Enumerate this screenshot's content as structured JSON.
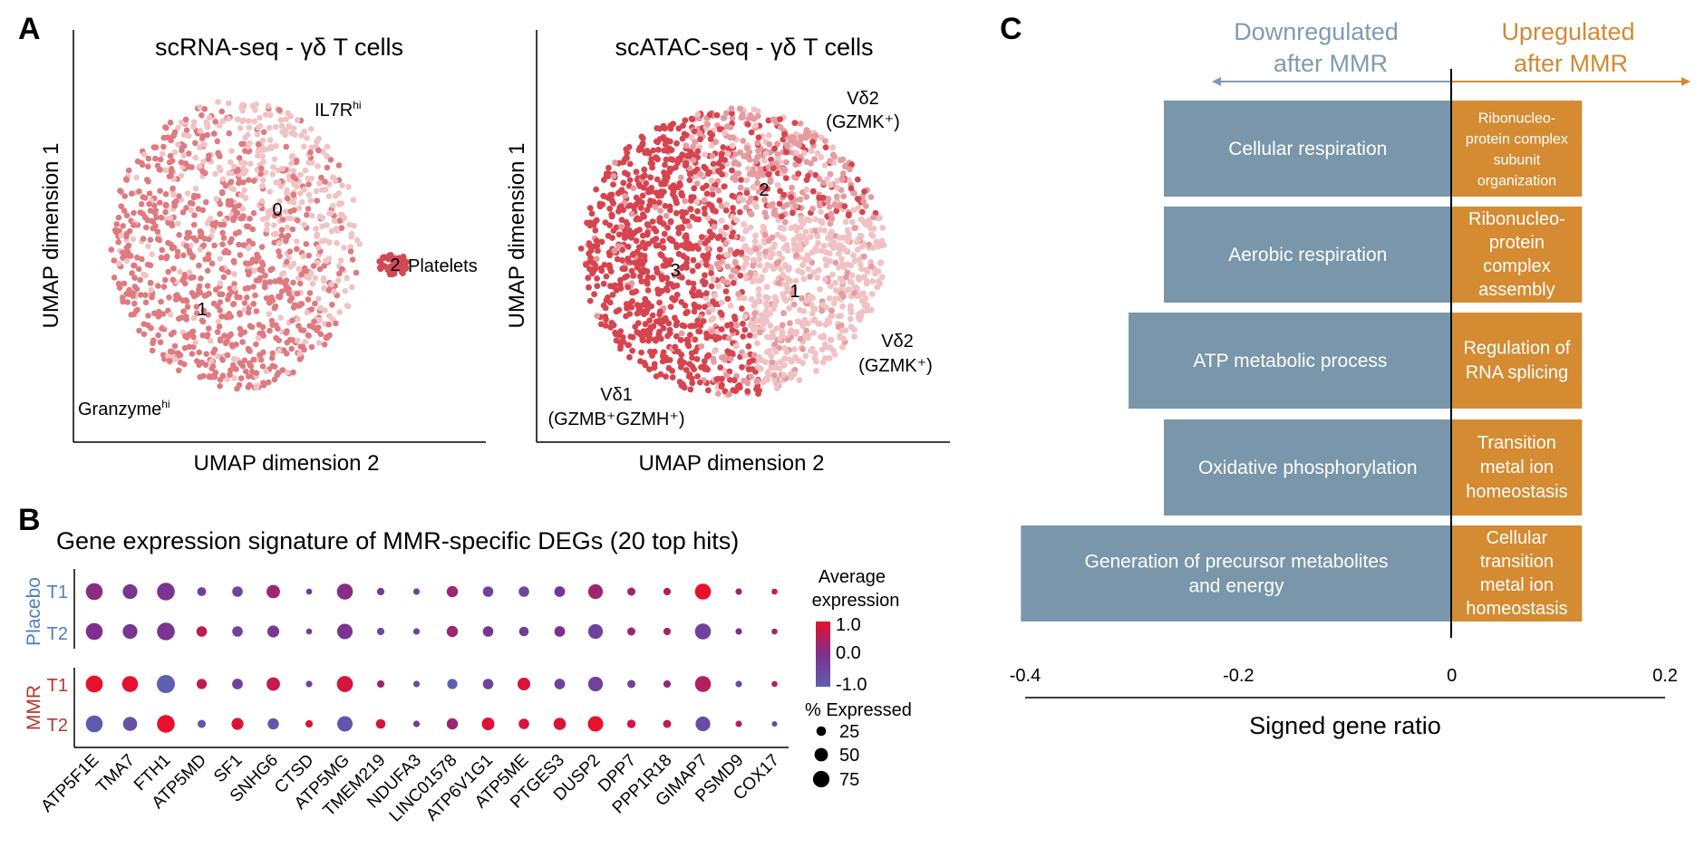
{
  "panel_letters": [
    "A",
    "B",
    "C"
  ],
  "chart_data": [
    {
      "type": "scatter",
      "panel": "A",
      "title": "scRNA-seq - γδ T cells",
      "xlabel": "UMAP dimension 2",
      "ylabel": "UMAP dimension 1",
      "cluster_labels": [
        "0",
        "1",
        "2"
      ],
      "annotations": [
        {
          "text": "IL7R",
          "sup": "hi"
        },
        {
          "text": "Platelets",
          "sup": ""
        },
        {
          "text": "Granzyme",
          "sup": "hi"
        }
      ],
      "colors": {
        "cluster0": "#f0c3c5",
        "cluster1": "#de7a80",
        "cluster2": "#d04a55"
      }
    },
    {
      "type": "scatter",
      "panel": "A",
      "title": "scATAC-seq - γδ T cells",
      "xlabel": "UMAP dimension 2",
      "ylabel": "UMAP dimension 1",
      "cluster_labels": [
        "1",
        "2",
        "3"
      ],
      "annotations": [
        {
          "line1": "Vδ2",
          "line2": "(GZMK⁺)"
        },
        {
          "line1": "Vδ2",
          "line2": "(GZMK⁺)"
        },
        {
          "line1": "Vδ1",
          "line2": "(GZMB⁺GZMH⁺)"
        }
      ],
      "colors": {
        "cluster1": "#f1c2c4",
        "cluster2": "#e49ca1",
        "cluster3": "#d6444f"
      }
    },
    {
      "type": "scatter",
      "subtype": "dotplot",
      "panel": "B",
      "title": "Gene expression signature of MMR-specific DEGs (20 top hits)",
      "genes": [
        "ATP5F1E",
        "TMA7",
        "FTH1",
        "ATP5MD",
        "SF1",
        "SNHG6",
        "CTSD",
        "ATP5MG",
        "TMEM219",
        "NDUFA3",
        "LINC01578",
        "ATP6V1G1",
        "ATP5ME",
        "PTGES3",
        "DUSP2",
        "DPP7",
        "PPP1R18",
        "GIMAP7",
        "PSMD9",
        "COX17"
      ],
      "groups": [
        {
          "name": "Placebo",
          "color": "#4f7fbf",
          "rows": [
            "T1",
            "T2"
          ]
        },
        {
          "name": "MMR",
          "color": "#b5372f",
          "rows": [
            "T1",
            "T2"
          ]
        }
      ],
      "pct_expressed": [
        [
          78,
          60,
          88,
          22,
          30,
          50,
          10,
          70,
          15,
          12,
          35,
          30,
          30,
          32,
          60,
          18,
          15,
          70,
          12,
          10
        ],
        [
          78,
          60,
          88,
          30,
          30,
          40,
          10,
          65,
          15,
          12,
          35,
          30,
          25,
          32,
          60,
          18,
          15,
          70,
          12,
          10
        ],
        [
          80,
          70,
          90,
          28,
          32,
          50,
          12,
          72,
          15,
          12,
          28,
          30,
          45,
          32,
          60,
          18,
          15,
          70,
          12,
          10
        ],
        [
          78,
          55,
          88,
          18,
          40,
          35,
          15,
          65,
          25,
          12,
          35,
          45,
          30,
          42,
          65,
          20,
          18,
          60,
          12,
          8
        ]
      ],
      "avg_expression": [
        [
          0.1,
          -0.1,
          -0.1,
          -0.3,
          -0.5,
          0.3,
          -0.2,
          0.1,
          -0.2,
          -0.4,
          0.3,
          -0.4,
          -0.5,
          -0.1,
          0.3,
          0.3,
          0.6,
          1.0,
          0.4,
          0.8
        ],
        [
          0.0,
          -0.1,
          -0.1,
          0.6,
          -0.4,
          -0.2,
          -0.3,
          -0.1,
          -0.5,
          -0.4,
          0.3,
          -0.1,
          -0.3,
          0.0,
          -0.4,
          0.3,
          0.4,
          -0.4,
          0.0,
          0.4
        ],
        [
          1.0,
          1.0,
          -1.0,
          0.6,
          -0.4,
          0.7,
          -0.4,
          0.8,
          0.3,
          -0.6,
          -1.0,
          -0.4,
          0.9,
          -0.4,
          -0.4,
          -0.4,
          0.2,
          0.5,
          -0.5,
          0.5
        ],
        [
          -0.9,
          -0.7,
          1.0,
          -0.8,
          0.9,
          -0.8,
          0.9,
          -0.8,
          0.8,
          -0.2,
          0.3,
          0.9,
          0.8,
          0.9,
          1.0,
          0.8,
          0.6,
          -0.6,
          0.5,
          -0.4
        ]
      ],
      "legend": {
        "color_title_line1": "Average",
        "color_title_line2": "expression",
        "color_ticks": [
          "1.0",
          "0.0",
          "-1.0"
        ],
        "color_range": [
          -1.0,
          1.0
        ],
        "colors": {
          "high": "#e8102c",
          "mid": "#7d2f8e",
          "low": "#5d5fb0"
        },
        "size_title": "% Expressed",
        "size_values": [
          25,
          50,
          75
        ]
      }
    },
    {
      "type": "bar",
      "orientation": "horizontal",
      "panel": "C",
      "xlabel": "Signed gene ratio",
      "xlim": [
        -0.4,
        0.2
      ],
      "x_ticks": [
        "-0.4",
        "-0.2",
        "0",
        "0.2"
      ],
      "x_tick_values": [
        -0.4,
        -0.2,
        0,
        0.2
      ],
      "header_down": [
        "Downregulated",
        "after MMR"
      ],
      "header_up": [
        "Upregulated",
        "after MMR"
      ],
      "colors": {
        "down": "#7996ab",
        "up": "#d48b32",
        "down_text": "#7f9bb1",
        "up_text": "#d08a35"
      },
      "rows": [
        {
          "down_label": [
            "Cellular respiration"
          ],
          "down_value": -0.27,
          "up_label": [
            "Ribonucleo-",
            "protein complex",
            "subunit",
            "organization"
          ],
          "up_value": 0.122
        },
        {
          "down_label": [
            "Aerobic respiration"
          ],
          "down_value": -0.27,
          "up_label": [
            "Ribonucleo-",
            "protein",
            "complex",
            "assembly"
          ],
          "up_value": 0.122
        },
        {
          "down_label": [
            "ATP metabolic process"
          ],
          "down_value": -0.303,
          "up_label": [
            "Regulation of",
            "RNA splicing"
          ],
          "up_value": 0.122
        },
        {
          "down_label": [
            "Oxidative phosphorylation"
          ],
          "down_value": -0.27,
          "up_label": [
            "Transition",
            "metal ion",
            "homeostasis"
          ],
          "up_value": 0.122
        },
        {
          "down_label": [
            "Generation of precursor metabolites",
            "and energy"
          ],
          "down_value": -0.404,
          "up_label": [
            "Cellular",
            "transition",
            "metal ion",
            "homeostasis"
          ],
          "up_value": 0.122
        }
      ]
    }
  ]
}
